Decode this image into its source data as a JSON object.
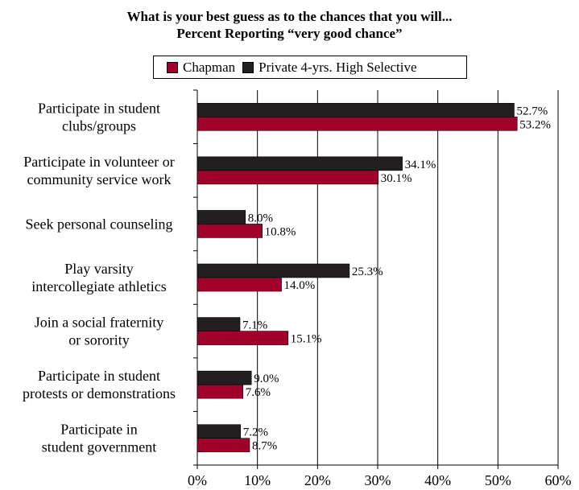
{
  "chart_data": {
    "type": "bar",
    "orientation": "horizontal",
    "title": "What is your best guess as to the chances that you will...",
    "subtitle": "Percent Reporting “very good chance”",
    "categories": [
      [
        "Participate in student",
        "clubs/groups"
      ],
      [
        "Participate in volunteer or",
        "community service work"
      ],
      [
        "Seek personal counseling"
      ],
      [
        "Play varsity",
        "intercollegiate athletics"
      ],
      [
        "Join a social fraternity",
        "or sorority"
      ],
      [
        "Participate in student",
        "protests or demonstrations"
      ],
      [
        "Participate in",
        "student government"
      ]
    ],
    "series": [
      {
        "name": "Private 4-yrs. High Selective",
        "color": "#231f20",
        "values": [
          52.7,
          34.1,
          8.0,
          25.3,
          7.1,
          9.0,
          7.2
        ],
        "labels": [
          "52.7%",
          "34.1%",
          "8.0%",
          "25.3%",
          "7.1%",
          "9.0%",
          "7.2%"
        ]
      },
      {
        "name": "Chapman",
        "color": "#a0002a",
        "values": [
          53.2,
          30.1,
          10.8,
          14.0,
          15.1,
          7.6,
          8.7
        ],
        "labels": [
          "53.2%",
          "30.1%",
          "10.8%",
          "14.0%",
          "15.1%",
          "7.6%",
          "8.7%"
        ]
      }
    ],
    "legend_order": [
      "Chapman",
      "Private 4-yrs. High Selective"
    ],
    "xlim": [
      0,
      60
    ],
    "xticks": [
      0,
      10,
      20,
      30,
      40,
      50,
      60
    ],
    "xtick_labels": [
      "0%",
      "10%",
      "20%",
      "30%",
      "40%",
      "50%",
      "60%"
    ],
    "grid": "vertical",
    "legend_position": "top"
  }
}
